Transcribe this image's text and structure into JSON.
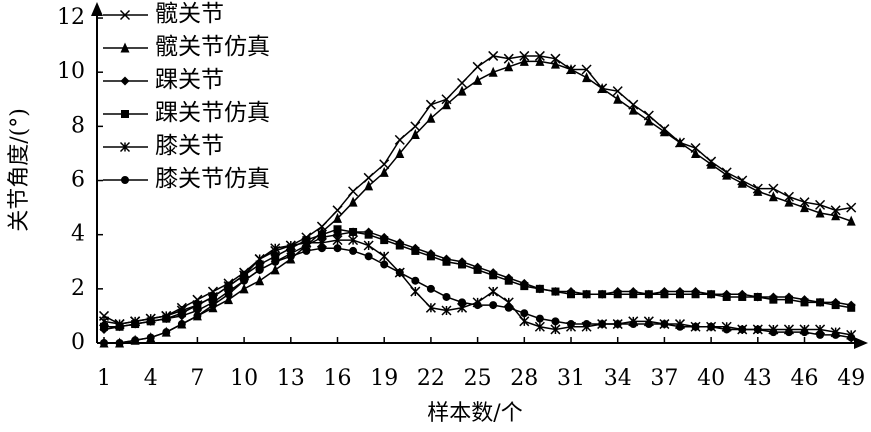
{
  "chart_data": {
    "type": "line",
    "x_label": "样本数/个",
    "y_label": "关节角度/(°)",
    "x": [
      1,
      2,
      3,
      4,
      5,
      6,
      7,
      8,
      9,
      10,
      11,
      12,
      13,
      14,
      15,
      16,
      17,
      18,
      19,
      20,
      21,
      22,
      23,
      24,
      25,
      26,
      27,
      28,
      29,
      30,
      31,
      32,
      33,
      34,
      35,
      36,
      37,
      38,
      39,
      40,
      41,
      42,
      43,
      44,
      45,
      46,
      47,
      48,
      49
    ],
    "xlim": [
      0.55,
      49.95
    ],
    "xticks": [
      1,
      4,
      7,
      10,
      13,
      16,
      19,
      22,
      25,
      28,
      31,
      34,
      37,
      40,
      43,
      46,
      49
    ],
    "ylim": [
      0,
      12.5
    ],
    "yticks": [
      0,
      2,
      4,
      6,
      8,
      10,
      12
    ],
    "legend": "upper left",
    "series": [
      {
        "name": "髋关节",
        "color": "#000000",
        "marker": "x",
        "values": [
          1.0,
          0.7,
          0.8,
          0.9,
          1.0,
          1.3,
          1.6,
          1.9,
          2.2,
          2.6,
          3.1,
          3.4,
          3.6,
          3.9,
          4.3,
          4.9,
          5.6,
          6.1,
          6.6,
          7.5,
          8.0,
          8.8,
          9.0,
          9.6,
          10.2,
          10.6,
          10.5,
          10.6,
          10.6,
          10.5,
          10.1,
          10.1,
          9.4,
          9.3,
          8.8,
          8.4,
          7.9,
          7.4,
          7.2,
          6.7,
          6.3,
          6.0,
          5.7,
          5.7,
          5.4,
          5.2,
          5.1,
          4.9,
          5.0
        ]
      },
      {
        "name": "髋关节仿真",
        "color": "#000000",
        "marker": "triangle",
        "values": [
          0,
          0,
          0.1,
          0.2,
          0.4,
          0.7,
          1.0,
          1.3,
          1.6,
          2.0,
          2.3,
          2.7,
          3.1,
          3.6,
          4.1,
          4.6,
          5.2,
          5.8,
          6.3,
          7.0,
          7.7,
          8.3,
          8.8,
          9.3,
          9.7,
          10.0,
          10.2,
          10.4,
          10.4,
          10.3,
          10.1,
          9.8,
          9.4,
          9.0,
          8.6,
          8.2,
          7.8,
          7.4,
          7.0,
          6.6,
          6.2,
          5.9,
          5.6,
          5.4,
          5.2,
          5.0,
          4.8,
          4.7,
          4.5
        ]
      },
      {
        "name": "踝关节",
        "color": "#000000",
        "marker": "diamond",
        "values": [
          0.5,
          0.6,
          0.7,
          0.8,
          0.9,
          1.0,
          1.2,
          1.5,
          1.9,
          2.3,
          2.7,
          3.0,
          3.3,
          3.6,
          3.9,
          4.0,
          4.1,
          4.1,
          3.9,
          3.7,
          3.5,
          3.3,
          3.1,
          3.0,
          2.8,
          2.6,
          2.4,
          2.2,
          2.0,
          1.9,
          1.9,
          1.8,
          1.8,
          1.9,
          1.9,
          1.8,
          1.9,
          1.9,
          1.9,
          1.8,
          1.8,
          1.8,
          1.7,
          1.7,
          1.7,
          1.6,
          1.5,
          1.5,
          1.4
        ]
      },
      {
        "name": "踝关节仿真",
        "color": "#000000",
        "marker": "square",
        "values": [
          0.6,
          0.6,
          0.7,
          0.8,
          0.9,
          1.1,
          1.4,
          1.7,
          2.1,
          2.5,
          2.9,
          3.2,
          3.5,
          3.8,
          4.0,
          4.2,
          4.1,
          4.0,
          3.8,
          3.6,
          3.4,
          3.2,
          3.0,
          2.9,
          2.7,
          2.5,
          2.3,
          2.1,
          2.0,
          1.9,
          1.8,
          1.8,
          1.8,
          1.8,
          1.8,
          1.8,
          1.8,
          1.8,
          1.8,
          1.8,
          1.7,
          1.7,
          1.7,
          1.6,
          1.6,
          1.5,
          1.5,
          1.4,
          1.3
        ]
      },
      {
        "name": "膝关节",
        "color": "#000000",
        "marker": "asterisk",
        "values": [
          0.8,
          0.7,
          0.8,
          0.9,
          1.0,
          1.2,
          1.4,
          1.7,
          2.1,
          2.5,
          3.1,
          3.5,
          3.6,
          3.7,
          3.7,
          3.8,
          3.8,
          3.6,
          3.2,
          2.6,
          1.9,
          1.3,
          1.2,
          1.3,
          1.5,
          1.9,
          1.5,
          0.8,
          0.6,
          0.5,
          0.6,
          0.6,
          0.7,
          0.7,
          0.8,
          0.8,
          0.7,
          0.7,
          0.6,
          0.6,
          0.6,
          0.5,
          0.5,
          0.5,
          0.5,
          0.5,
          0.5,
          0.4,
          0.3
        ]
      },
      {
        "name": "膝关节仿真",
        "color": "#000000",
        "marker": "circle",
        "values": [
          0,
          0,
          0.1,
          0.2,
          0.4,
          0.7,
          1.0,
          1.4,
          1.8,
          2.3,
          2.7,
          3.0,
          3.2,
          3.4,
          3.5,
          3.5,
          3.4,
          3.2,
          2.9,
          2.6,
          2.3,
          2.0,
          1.7,
          1.5,
          1.4,
          1.4,
          1.3,
          1.1,
          0.9,
          0.8,
          0.7,
          0.7,
          0.7,
          0.7,
          0.7,
          0.7,
          0.7,
          0.6,
          0.6,
          0.6,
          0.5,
          0.5,
          0.5,
          0.4,
          0.4,
          0.4,
          0.3,
          0.3,
          0.2
        ]
      }
    ]
  }
}
